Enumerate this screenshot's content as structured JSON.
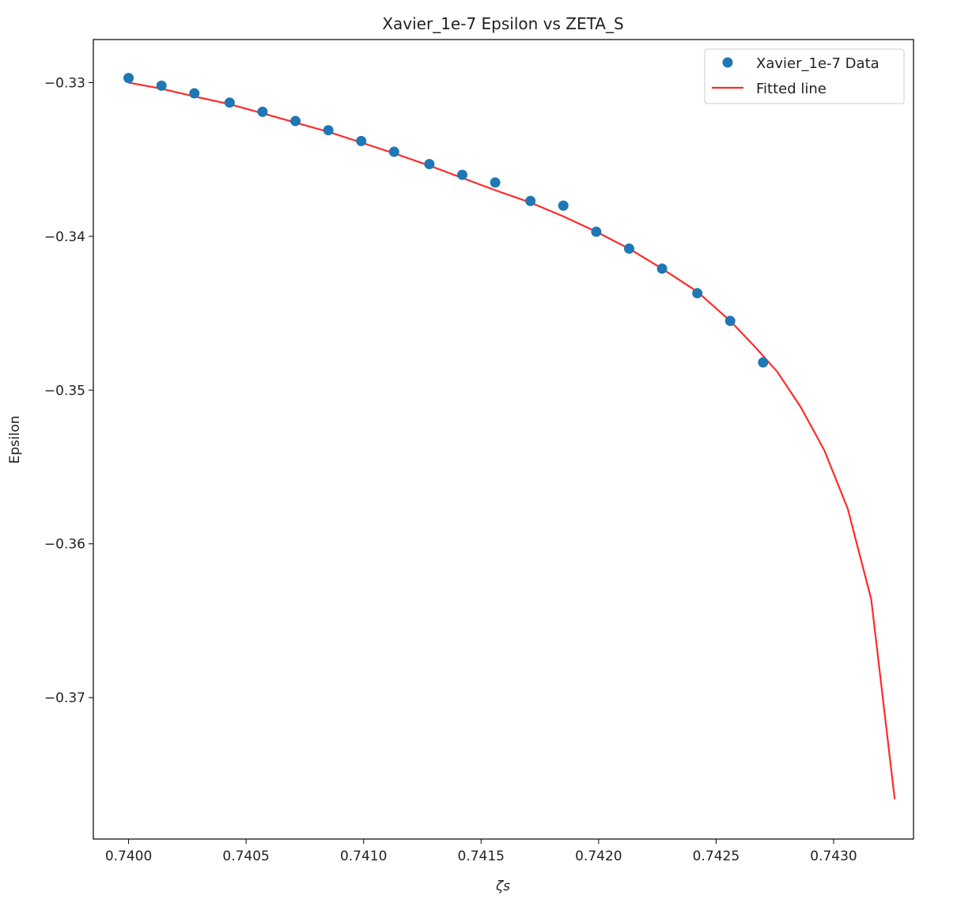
{
  "chart_data": {
    "type": "scatter",
    "title": "Xavier_1e-7 Epsilon vs ZETA_S",
    "xlabel": "ζs",
    "ylabel": "Epsilon",
    "xlim": [
      0.73985,
      0.74334
    ],
    "ylim": [
      -0.3792,
      -0.3272
    ],
    "xticks": [
      0.74,
      0.7405,
      0.741,
      0.7415,
      0.742,
      0.7425,
      0.743
    ],
    "xtick_labels": [
      "0.7400",
      "0.7405",
      "0.7410",
      "0.7415",
      "0.7420",
      "0.7425",
      "0.7430"
    ],
    "yticks": [
      -0.33,
      -0.34,
      -0.35,
      -0.36,
      -0.37
    ],
    "ytick_labels": [
      "−0.33",
      "−0.34",
      "−0.35",
      "−0.36",
      "−0.37"
    ],
    "legend_position": "top-right",
    "grid": false,
    "series": [
      {
        "name": "Xavier_1e-7 Data",
        "kind": "scatter",
        "color": "#1f77b4",
        "x": [
          0.74,
          0.74014,
          0.74028,
          0.74043,
          0.74057,
          0.74071,
          0.74085,
          0.74099,
          0.74113,
          0.74128,
          0.74142,
          0.74156,
          0.74171,
          0.74185,
          0.74199,
          0.74213,
          0.74227,
          0.74242,
          0.74256,
          0.7427
        ],
        "y": [
          -0.3297,
          -0.3302,
          -0.3307,
          -0.3313,
          -0.3319,
          -0.3325,
          -0.3331,
          -0.3338,
          -0.3345,
          -0.3353,
          -0.336,
          -0.3365,
          -0.3377,
          -0.338,
          -0.3397,
          -0.3408,
          -0.3421,
          -0.3437,
          -0.3455,
          -0.3482
        ]
      },
      {
        "name": "Fitted line",
        "kind": "line",
        "color": "#ff2a2a",
        "x": [
          0.74,
          0.74014,
          0.74028,
          0.74043,
          0.74057,
          0.74071,
          0.74085,
          0.74099,
          0.74113,
          0.74128,
          0.74142,
          0.74156,
          0.74171,
          0.74185,
          0.74199,
          0.74213,
          0.74227,
          0.74242,
          0.74256,
          0.74266,
          0.74276,
          0.74286,
          0.74296,
          0.74306,
          0.74316,
          0.74326
        ],
        "y": [
          -0.33,
          -0.3304,
          -0.3309,
          -0.3314,
          -0.332,
          -0.3326,
          -0.3332,
          -0.3339,
          -0.3346,
          -0.3354,
          -0.3362,
          -0.337,
          -0.3378,
          -0.3387,
          -0.3397,
          -0.3408,
          -0.3421,
          -0.3436,
          -0.3455,
          -0.3471,
          -0.3488,
          -0.3511,
          -0.3539,
          -0.3577,
          -0.3636,
          -0.3766
        ]
      }
    ]
  }
}
